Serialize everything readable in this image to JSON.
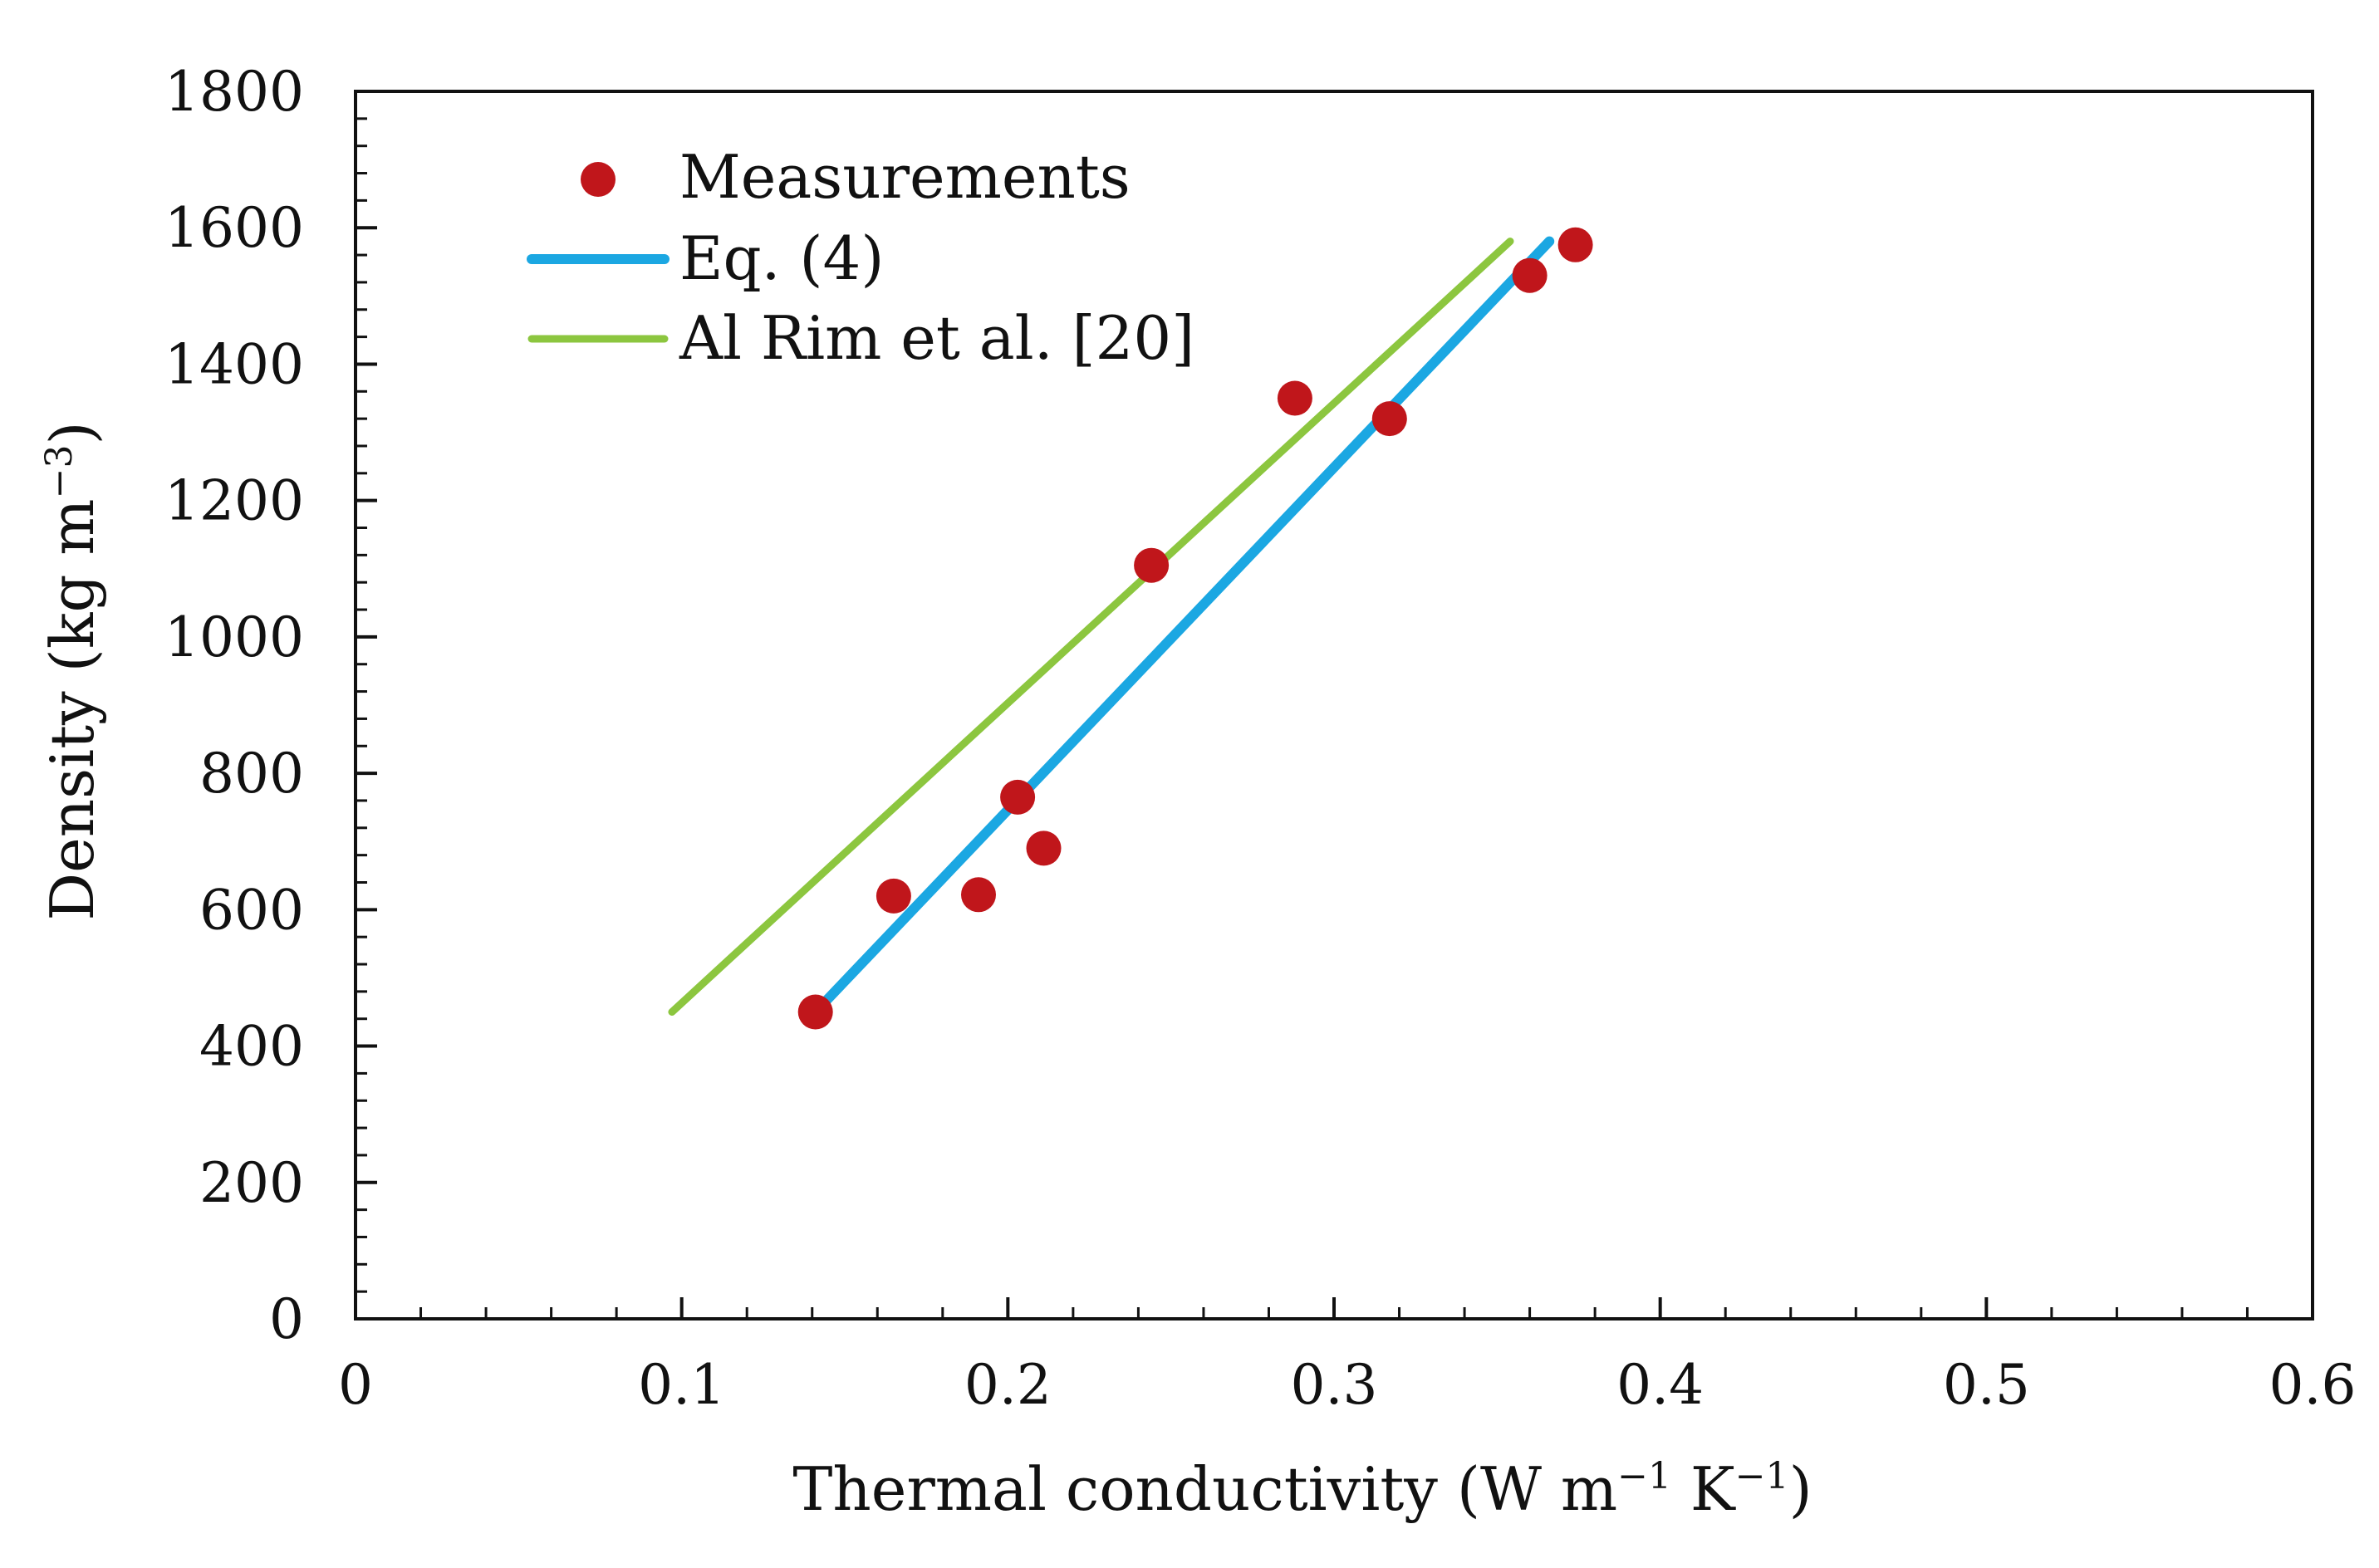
{
  "chart_data": {
    "type": "scatter",
    "title": "",
    "xlabel": {
      "text": "Thermal conductivity (W m",
      "sup1": "−1",
      "mid": " K",
      "sup2": "−1",
      "end": ")"
    },
    "ylabel": {
      "text": "Density (kg m",
      "sup": "−3",
      "end": ")"
    },
    "xlim": [
      0,
      0.6
    ],
    "ylim": [
      0,
      1800
    ],
    "xticks": [
      0,
      0.1,
      0.2,
      0.3,
      0.4,
      0.5,
      0.6
    ],
    "xtick_labels": [
      "0",
      "0.1",
      "0.2",
      "0.3",
      "0.4",
      "0.5",
      "0.6"
    ],
    "yticks": [
      0,
      200,
      400,
      600,
      800,
      1000,
      1200,
      1400,
      1600,
      1800
    ],
    "ytick_labels": [
      "0",
      "200",
      "400",
      "600",
      "800",
      "1000",
      "1200",
      "1400",
      "1600",
      "1800"
    ],
    "x_minor_step": 0.02,
    "y_minor_step": 40,
    "grid": false,
    "legend_position": "top-left",
    "series": [
      {
        "name": "Measurements",
        "kind": "scatter",
        "color": "#c0161b",
        "points": [
          {
            "x": 0.141,
            "y": 450
          },
          {
            "x": 0.165,
            "y": 620
          },
          {
            "x": 0.191,
            "y": 622
          },
          {
            "x": 0.203,
            "y": 765
          },
          {
            "x": 0.211,
            "y": 690
          },
          {
            "x": 0.244,
            "y": 1105
          },
          {
            "x": 0.288,
            "y": 1350
          },
          {
            "x": 0.317,
            "y": 1320
          },
          {
            "x": 0.36,
            "y": 1530
          },
          {
            "x": 0.374,
            "y": 1575
          }
        ]
      },
      {
        "name": "Eq. (4)",
        "kind": "line",
        "color": "#1ba7e2",
        "points": [
          {
            "x": 0.141,
            "y": 450
          },
          {
            "x": 0.366,
            "y": 1580
          }
        ]
      },
      {
        "name": "Al Rim et al. [20]",
        "kind": "line",
        "color": "#8cc63f",
        "points": [
          {
            "x": 0.097,
            "y": 450
          },
          {
            "x": 0.354,
            "y": 1580
          }
        ]
      }
    ]
  }
}
